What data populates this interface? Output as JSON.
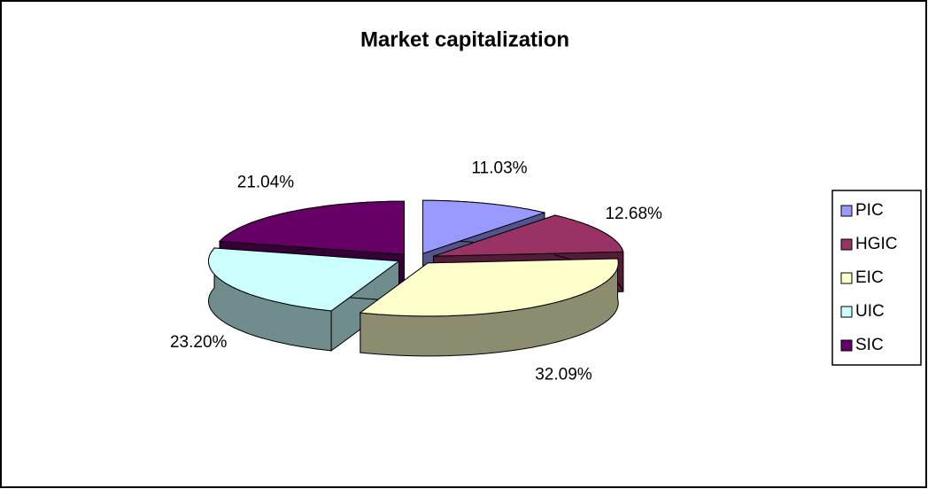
{
  "chart_data": {
    "type": "pie3d",
    "title": "Market capitalization",
    "categories": [
      "PIC",
      "HGIC",
      "EIC",
      "UIC",
      "SIC"
    ],
    "values": [
      11.03,
      12.68,
      32.09,
      23.2,
      21.04
    ],
    "value_labels": [
      "11.03%",
      "12.68%",
      "32.09%",
      "23.20%",
      "21.04%"
    ],
    "colors": [
      "#9999ff",
      "#993366",
      "#ffffcc",
      "#ccffff",
      "#660066"
    ],
    "legend": "right"
  }
}
